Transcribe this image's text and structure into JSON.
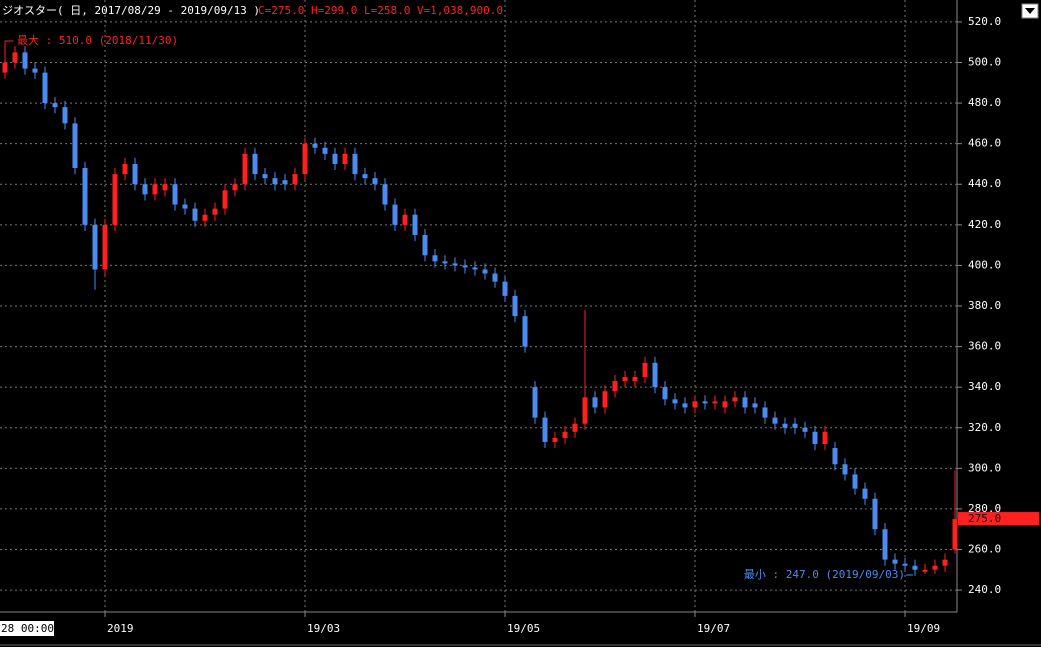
{
  "chart_data": {
    "type": "candlestick",
    "title": "ジオスター( 日, 2017/08/29 - 2019/09/13 )",
    "subtitle": "C=275.0 H=299.0 L=258.0 V=1,038,900.0",
    "cursor_label": "28 00:00",
    "last_label": "275.0",
    "annotations": {
      "max": "最大 : 510.0 (2018/11/30)",
      "min": "最小 : 247.0 (2019/09/03)"
    },
    "up_color": "#ff2020",
    "down_color": "#4a8cf0",
    "grid": true,
    "ylim": [
      229.2,
      530.8
    ],
    "yticks": [
      {
        "value": 240,
        "label": "240.0"
      },
      {
        "value": 260,
        "label": "260.0"
      },
      {
        "value": 280,
        "label": "280.0"
      },
      {
        "value": 300,
        "label": "300.0"
      },
      {
        "value": 320,
        "label": "320.0"
      },
      {
        "value": 340,
        "label": "340.0"
      },
      {
        "value": 360,
        "label": "360.0"
      },
      {
        "value": 380,
        "label": "380.0"
      },
      {
        "value": 400,
        "label": "400.0"
      },
      {
        "value": 420,
        "label": "420.0"
      },
      {
        "value": 440,
        "label": "440.0"
      },
      {
        "value": 460,
        "label": "460.0"
      },
      {
        "value": 480,
        "label": "480.0"
      },
      {
        "value": 500,
        "label": "500.0"
      },
      {
        "value": 520,
        "label": "520.0"
      }
    ],
    "categories": [
      null,
      null,
      null,
      null,
      null,
      null,
      null,
      null,
      null,
      null,
      "2019",
      null,
      null,
      null,
      null,
      null,
      null,
      null,
      null,
      null,
      null,
      null,
      null,
      null,
      null,
      null,
      null,
      null,
      null,
      null,
      "19/03",
      null,
      null,
      null,
      null,
      null,
      null,
      null,
      null,
      null,
      null,
      null,
      null,
      null,
      null,
      null,
      null,
      null,
      null,
      null,
      "19/05",
      null,
      null,
      null,
      null,
      null,
      null,
      null,
      null,
      null,
      null,
      null,
      null,
      null,
      null,
      null,
      null,
      null,
      null,
      "19/07",
      null,
      null,
      null,
      null,
      null,
      null,
      null,
      null,
      null,
      null,
      null,
      null,
      null,
      null,
      null,
      null,
      null,
      null,
      null,
      null,
      "19/09",
      null,
      null,
      null,
      null,
      null
    ],
    "open": [
      495,
      500,
      505,
      497,
      495,
      480,
      478,
      470,
      448,
      420,
      398,
      420,
      445,
      450,
      440,
      435,
      437,
      440,
      430,
      428,
      422,
      425,
      428,
      437,
      440,
      455,
      445,
      443,
      442,
      440,
      445,
      460,
      458,
      455,
      450,
      455,
      445,
      443,
      440,
      430,
      420,
      425,
      415,
      405,
      402,
      401,
      400,
      399,
      398,
      396,
      392,
      385,
      375,
      340,
      325,
      313,
      315,
      318,
      322,
      335,
      330,
      338,
      343,
      343,
      345,
      352,
      340,
      334,
      332,
      330,
      333,
      332,
      330,
      333,
      335,
      332,
      330,
      325,
      322,
      322,
      320,
      318,
      312,
      310,
      302,
      297,
      290,
      285,
      270,
      255,
      253,
      252,
      249,
      250,
      252,
      260
    ],
    "high": [
      510,
      508,
      508,
      500,
      498,
      483,
      481,
      473,
      451,
      423,
      423,
      448,
      453,
      453,
      443,
      443,
      443,
      443,
      433,
      431,
      428,
      431,
      440,
      443,
      458,
      458,
      448,
      446,
      445,
      448,
      463,
      463,
      461,
      458,
      458,
      458,
      448,
      446,
      443,
      433,
      428,
      428,
      418,
      408,
      405,
      404,
      403,
      402,
      401,
      399,
      395,
      388,
      378,
      343,
      328,
      318,
      321,
      325,
      378,
      338,
      341,
      346,
      348,
      348,
      355,
      355,
      343,
      337,
      335,
      336,
      336,
      336,
      336,
      338,
      338,
      335,
      333,
      328,
      325,
      325,
      323,
      321,
      321,
      313,
      305,
      300,
      293,
      288,
      273,
      258,
      256,
      255,
      253,
      255,
      258,
      299
    ],
    "low": [
      492,
      497,
      494,
      492,
      477,
      475,
      467,
      445,
      417,
      388,
      395,
      417,
      442,
      437,
      432,
      432,
      434,
      427,
      425,
      419,
      419,
      422,
      425,
      434,
      437,
      442,
      440,
      437,
      437,
      437,
      442,
      455,
      452,
      447,
      447,
      442,
      440,
      437,
      427,
      417,
      417,
      412,
      402,
      399,
      398,
      397,
      396,
      395,
      393,
      389,
      382,
      372,
      357,
      322,
      310,
      310,
      312,
      315,
      319,
      327,
      327,
      335,
      340,
      340,
      342,
      337,
      331,
      329,
      327,
      327,
      329,
      329,
      327,
      330,
      327,
      327,
      322,
      319,
      317,
      317,
      315,
      309,
      309,
      299,
      294,
      287,
      282,
      267,
      252,
      250,
      249,
      247,
      248,
      248,
      249,
      258
    ],
    "close": [
      500,
      505,
      497,
      495,
      480,
      478,
      470,
      448,
      420,
      398,
      420,
      445,
      450,
      440,
      435,
      440,
      440,
      430,
      428,
      422,
      425,
      428,
      437,
      440,
      455,
      445,
      443,
      440,
      440,
      445,
      460,
      458,
      455,
      450,
      455,
      445,
      443,
      440,
      430,
      420,
      425,
      415,
      405,
      402,
      401,
      400,
      399,
      398,
      396,
      392,
      385,
      375,
      360,
      325,
      313,
      315,
      318,
      322,
      335,
      330,
      338,
      343,
      345,
      345,
      352,
      340,
      334,
      332,
      330,
      333,
      332,
      333,
      333,
      335,
      330,
      330,
      325,
      322,
      320,
      320,
      318,
      312,
      318,
      302,
      297,
      290,
      285,
      270,
      255,
      253,
      252,
      250,
      250,
      252,
      255,
      275
    ]
  }
}
